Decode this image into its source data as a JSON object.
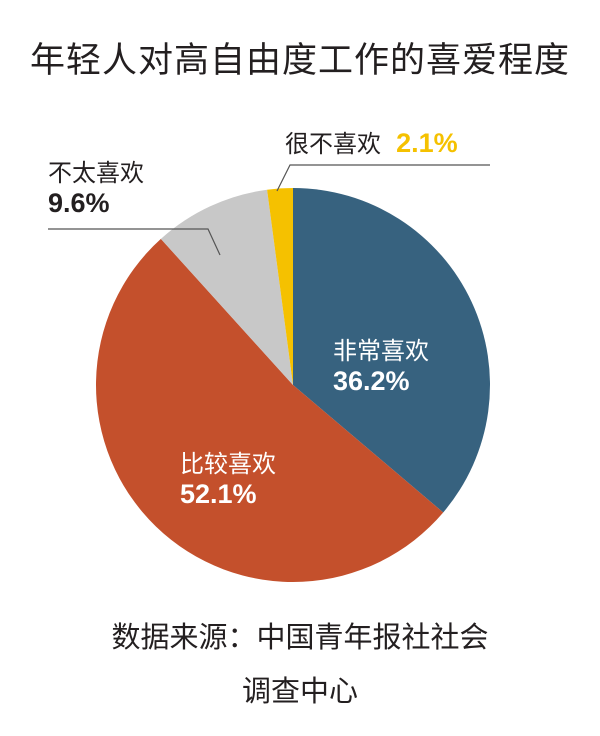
{
  "title": "年轻人对高自由度工作的喜爱程度",
  "chart_data": {
    "type": "pie",
    "title": "年轻人对高自由度工作的喜爱程度",
    "start_angle": "12 o'clock, clockwise",
    "slices": [
      {
        "label": "非常喜欢",
        "value": 36.2,
        "display": "36.2%",
        "color": "#37627F"
      },
      {
        "label": "比较喜欢",
        "value": 52.1,
        "display": "52.1%",
        "color": "#C4502C"
      },
      {
        "label": "不太喜欢",
        "value": 9.6,
        "display": "9.6%",
        "color": "#C8C8C8"
      },
      {
        "label": "很不喜欢",
        "value": 2.1,
        "display": "2.1%",
        "color": "#F5C100"
      }
    ],
    "unit": "%",
    "source": "数据来源：中国青年报社社会调查中心"
  },
  "labels": {
    "very_like": {
      "name": "非常喜欢",
      "pct": "36.2%"
    },
    "quite_like": {
      "name": "比较喜欢",
      "pct": "52.1%"
    },
    "not_much": {
      "name": "不太喜欢",
      "pct": "9.6%"
    },
    "dislike": {
      "name": "很不喜欢",
      "pct": "2.1%"
    }
  },
  "source": {
    "line1": "数据来源：中国青年报社社会",
    "line2": "调查中心"
  },
  "colors": {
    "very_like": "#37627F",
    "quite_like": "#C4502C",
    "not_much": "#C8C8C8",
    "dislike": "#F5C100",
    "dislike_text": "#F5C100",
    "leader_line": "#555555"
  }
}
